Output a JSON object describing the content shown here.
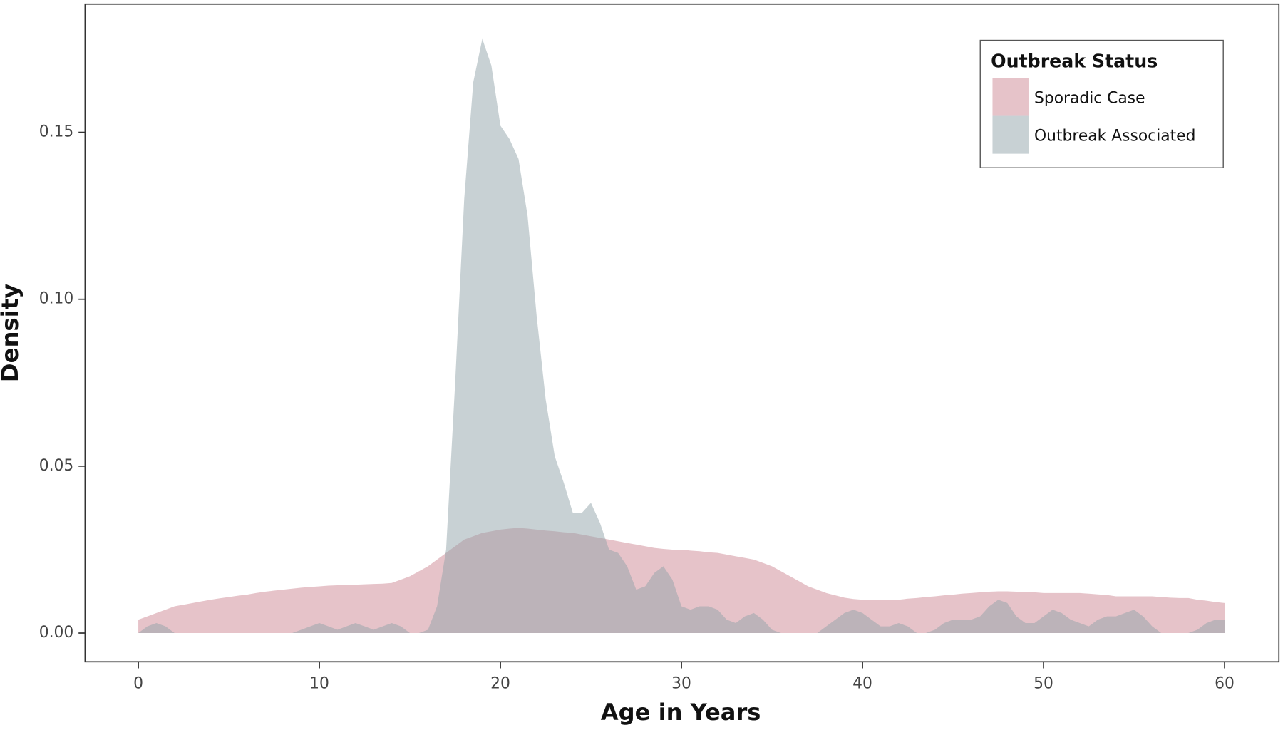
{
  "chart_data": {
    "type": "area",
    "xlabel": "Age in Years",
    "ylabel": "Density",
    "legend_title": "Outbreak Status",
    "legend": "top-right",
    "x": [
      0,
      0.5,
      1,
      1.5,
      2,
      2.5,
      3,
      3.5,
      4,
      4.5,
      5,
      5.5,
      6,
      6.5,
      7,
      7.5,
      8,
      8.5,
      9,
      9.5,
      10,
      10.5,
      11,
      11.5,
      12,
      12.5,
      13,
      13.5,
      14,
      14.5,
      15,
      15.5,
      16,
      16.5,
      17,
      17.5,
      18,
      18.5,
      19,
      19.5,
      20,
      20.5,
      21,
      21.5,
      22,
      22.5,
      23,
      23.5,
      24,
      24.5,
      25,
      25.5,
      26,
      26.5,
      27,
      27.5,
      28,
      28.5,
      29,
      29.5,
      30,
      30.5,
      31,
      31.5,
      32,
      32.5,
      33,
      33.5,
      34,
      34.5,
      35,
      35.5,
      36,
      36.5,
      37,
      37.5,
      38,
      38.5,
      39,
      39.5,
      40,
      40.5,
      41,
      41.5,
      42,
      42.5,
      43,
      43.5,
      44,
      44.5,
      45,
      45.5,
      46,
      46.5,
      47,
      47.5,
      48,
      48.5,
      49,
      49.5,
      50,
      50.5,
      51,
      51.5,
      52,
      52.5,
      53,
      53.5,
      54,
      54.5,
      55,
      55.5,
      56,
      56.5,
      57,
      57.5,
      58,
      58.5,
      59,
      59.5,
      60
    ],
    "series": [
      {
        "name": "Sporadic Case",
        "color": "#cd8893",
        "values": [
          0.004,
          0.005,
          0.006,
          0.007,
          0.008,
          0.0085,
          0.009,
          0.0095,
          0.01,
          0.0104,
          0.0108,
          0.0112,
          0.0115,
          0.012,
          0.0124,
          0.0127,
          0.013,
          0.0133,
          0.0136,
          0.0138,
          0.014,
          0.0142,
          0.0143,
          0.0144,
          0.0145,
          0.0146,
          0.0147,
          0.0148,
          0.015,
          0.016,
          0.017,
          0.0185,
          0.02,
          0.022,
          0.024,
          0.026,
          0.028,
          0.029,
          0.03,
          0.0305,
          0.031,
          0.0313,
          0.0315,
          0.0313,
          0.031,
          0.0307,
          0.0305,
          0.0302,
          0.03,
          0.0295,
          0.029,
          0.0285,
          0.028,
          0.0275,
          0.027,
          0.0265,
          0.026,
          0.0255,
          0.0252,
          0.025,
          0.025,
          0.0247,
          0.0245,
          0.0242,
          0.024,
          0.0235,
          0.023,
          0.0225,
          0.022,
          0.021,
          0.02,
          0.0185,
          0.017,
          0.0155,
          0.014,
          0.013,
          0.012,
          0.0113,
          0.0106,
          0.0102,
          0.01,
          0.01,
          0.01,
          0.01,
          0.01,
          0.0103,
          0.0105,
          0.0108,
          0.011,
          0.0113,
          0.0115,
          0.0118,
          0.012,
          0.0122,
          0.0124,
          0.0125,
          0.0125,
          0.0124,
          0.0123,
          0.0122,
          0.012,
          0.012,
          0.012,
          0.012,
          0.012,
          0.0118,
          0.0116,
          0.0114,
          0.011,
          0.011,
          0.011,
          0.011,
          0.011,
          0.0108,
          0.0106,
          0.0105,
          0.0105,
          0.01,
          0.0097,
          0.0093,
          0.009
        ]
      },
      {
        "name": "Outbreak Associated",
        "color": "#91a4a9",
        "values": [
          0,
          0.002,
          0.003,
          0.002,
          0,
          0,
          0,
          0,
          0,
          0,
          0,
          0,
          0,
          0,
          0,
          0,
          0,
          0,
          0.001,
          0.002,
          0.003,
          0.002,
          0.001,
          0.002,
          0.003,
          0.002,
          0.001,
          0.002,
          0.003,
          0.002,
          0,
          0,
          0.001,
          0.008,
          0.025,
          0.075,
          0.13,
          0.165,
          0.178,
          0.17,
          0.152,
          0.148,
          0.142,
          0.125,
          0.095,
          0.07,
          0.053,
          0.045,
          0.036,
          0.036,
          0.039,
          0.033,
          0.025,
          0.024,
          0.02,
          0.013,
          0.014,
          0.018,
          0.02,
          0.016,
          0.008,
          0.007,
          0.008,
          0.008,
          0.007,
          0.004,
          0.003,
          0.005,
          0.006,
          0.004,
          0.001,
          0,
          0,
          0,
          0,
          0,
          0.002,
          0.004,
          0.006,
          0.007,
          0.006,
          0.004,
          0.002,
          0.002,
          0.003,
          0.002,
          0,
          0,
          0.001,
          0.003,
          0.004,
          0.004,
          0.004,
          0.005,
          0.008,
          0.01,
          0.009,
          0.005,
          0.003,
          0.003,
          0.005,
          0.007,
          0.006,
          0.004,
          0.003,
          0.002,
          0.004,
          0.005,
          0.005,
          0.006,
          0.007,
          0.005,
          0.002,
          0,
          0,
          0,
          0,
          0.001,
          0.003,
          0.004,
          0.004
        ]
      }
    ],
    "xlim": [
      -2.94,
      63
    ],
    "xticks": [
      0,
      10,
      20,
      30,
      40,
      50,
      60
    ],
    "ylim": [
      -0.0086,
      0.1884
    ],
    "yticks": [
      {
        "value": 0,
        "label": "0.00"
      },
      {
        "value": 0.05,
        "label": "0.05"
      },
      {
        "value": 0.1,
        "label": "0.10"
      },
      {
        "value": 0.15,
        "label": "0.15"
      }
    ]
  }
}
